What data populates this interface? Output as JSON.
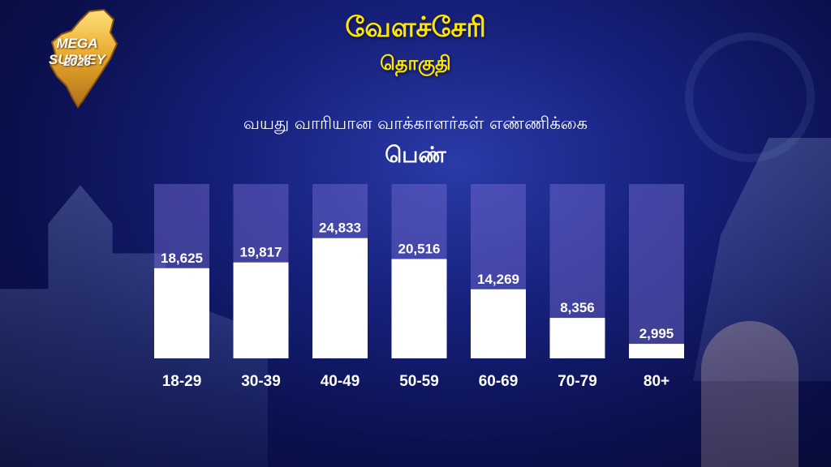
{
  "logo": {
    "brand": "MEGA SURVEY",
    "year": "2026"
  },
  "header": {
    "title": "வேளச்சேரி",
    "subtitle": "தொகுதி"
  },
  "chart_data": {
    "type": "bar",
    "title": "வயது வாரியான வாக்காளர்கள் எண்ணிக்கை",
    "subtitle": "பெண்",
    "categories": [
      "18-29",
      "30-39",
      "40-49",
      "50-59",
      "60-69",
      "70-79",
      "80+"
    ],
    "values": [
      18625,
      19817,
      24833,
      20516,
      14269,
      8356,
      2995
    ],
    "value_labels": [
      "18,625",
      "19,817",
      "24,833",
      "20,516",
      "14,269",
      "8,356",
      "2,995"
    ],
    "ylim": [
      0,
      36000
    ],
    "xlabel": "",
    "ylabel": "",
    "grid": false,
    "colors": {
      "bar": "#ffffff",
      "track": "#7a6ed2",
      "title": "#ffe600"
    }
  }
}
